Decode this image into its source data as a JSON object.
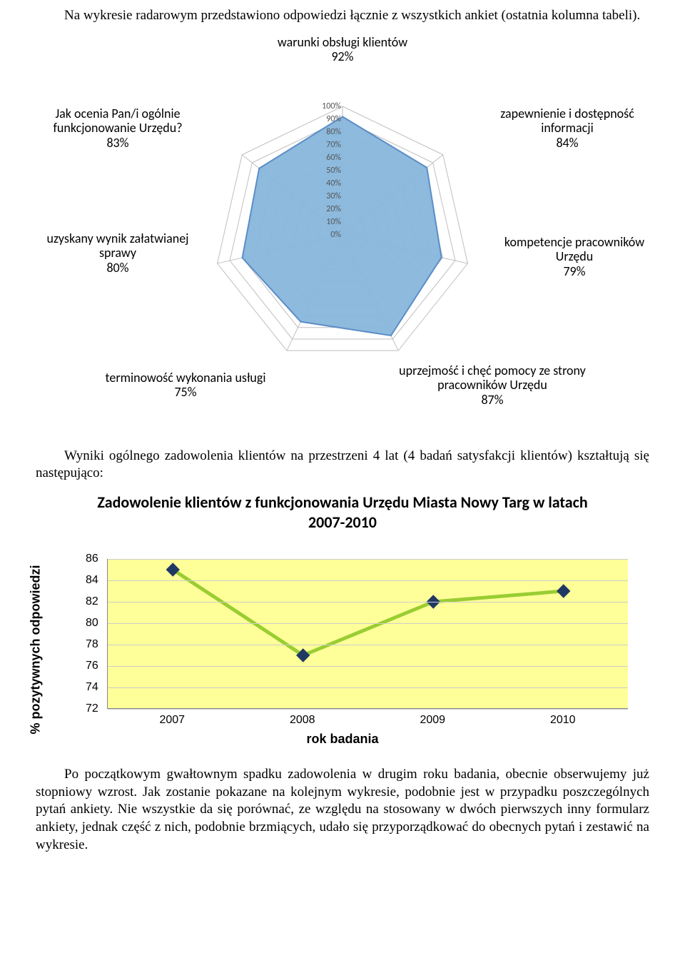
{
  "intro_para": "Na wykresie radarowym przedstawiono odpowiedzi łącznie z wszystkich ankiet (ostatnia kolumna tabeli).",
  "radar": {
    "title_top": "warunki obsługi klientów\n92%",
    "axes": [
      {
        "label": "warunki obsługi klientów\n92%",
        "value": 92
      },
      {
        "label": "zapewnienie i dostępność informacji\n84%",
        "value": 84
      },
      {
        "label": "kompetencje pracowników Urzędu\n79%",
        "value": 79
      },
      {
        "label": "uprzejmość i chęć pomocy ze strony pracowników Urzędu\n87%",
        "value": 87
      },
      {
        "label": "terminowość wykonania usługi\n75%",
        "value": 75
      },
      {
        "label": "uzyskany wynik załatwianej sprawy\n80%",
        "value": 80
      },
      {
        "label": "Jak ocenia Pan/i ogólnie funkcjonowanie Urzędu?\n83%",
        "value": 83
      }
    ],
    "ticks": [
      "0%",
      "10%",
      "20%",
      "30%",
      "40%",
      "50%",
      "60%",
      "70%",
      "80%",
      "90%",
      "100%"
    ],
    "fill_color": "#87b6db",
    "line_color": "#5a8ec7",
    "grid_color": "#bfbfbf",
    "spoke_color": "#bfbfbf",
    "tick_font_color": "#555555"
  },
  "mid_para": "Wyniki ogólnego zadowolenia klientów na przestrzeni 4 lat (4 badań satysfakcji klientów) kształtują się następująco:",
  "chart_title": "Zadowolenie klientów z funkcjonowania Urzędu Miasta Nowy Targ w latach 2007-2010",
  "line_chart": {
    "type": "line",
    "ylabel": "% pozytywnych\nodpowiedzi",
    "xlabel": "rok badania",
    "x": [
      "2007",
      "2008",
      "2009",
      "2010"
    ],
    "y": [
      85,
      77,
      82,
      83
    ],
    "ylim": [
      72,
      86
    ],
    "ytick_step": 2,
    "yticks": [
      72,
      74,
      76,
      78,
      80,
      82,
      84,
      86
    ],
    "marker_color": "#203864",
    "marker_size": 18,
    "line_color": "#9acd32",
    "line_width": 5,
    "plot_bg": "#ffff99",
    "grid_color": "#cccccc"
  },
  "end_para": "Po początkowym gwałtownym spadku zadowolenia w drugim roku badania, obecnie obserwujemy już stopniowy wzrost. Jak zostanie pokazane na kolejnym wykresie, podobnie jest w przypadku poszczególnych pytań ankiety. Nie wszystkie da się porównać, ze względu na stosowany w dwóch pierwszych inny formularz ankiety, jednak część z nich, podobnie brzmiących, udało się przyporządkować do obecnych pytań i zestawić na wykresie."
}
